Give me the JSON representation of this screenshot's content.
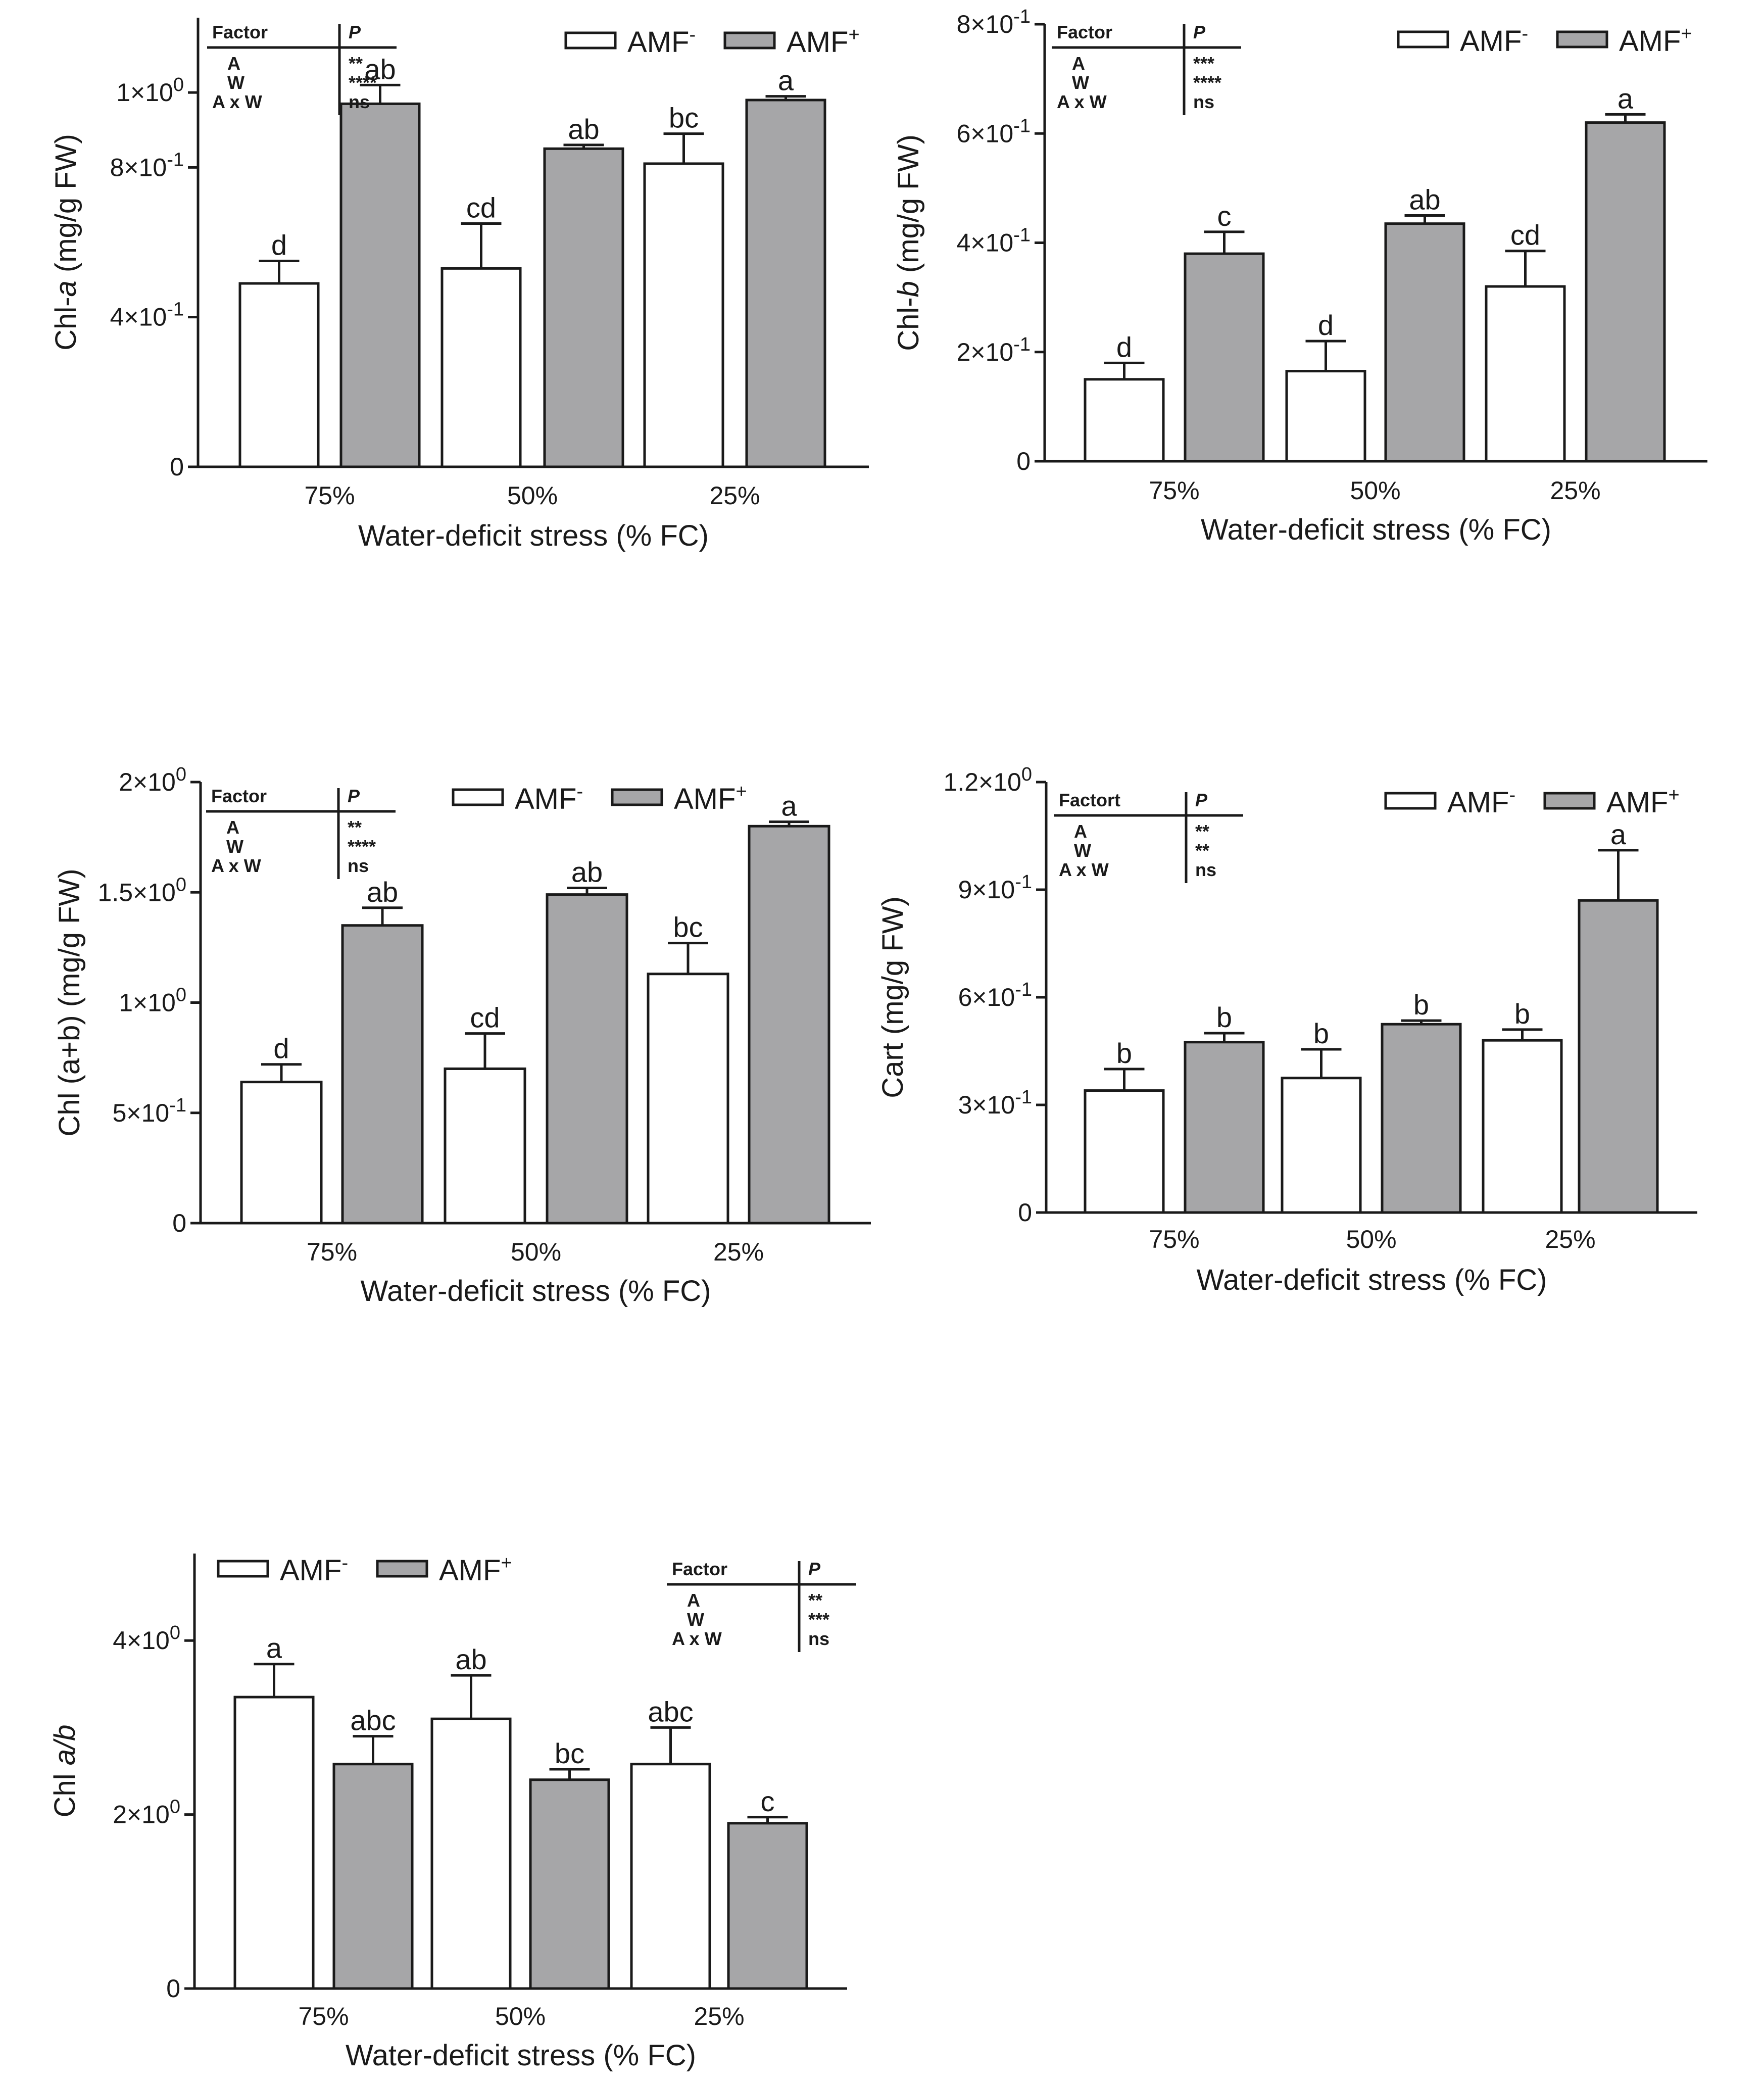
{
  "colors": {
    "amf_minus": "#ffffff",
    "amf_plus": "#a6a6a8",
    "stroke": "#1a1a1a"
  },
  "chart_data": [
    {
      "id": "chl-a",
      "type": "bar",
      "ylabel": "Chl-a (mg/g FW)",
      "xlabel": "Water-deficit stress (% FC)",
      "categories": [
        "75%",
        "50%",
        "25%"
      ],
      "ylim": [
        0,
        1.2
      ],
      "yticks": [
        0,
        0.4,
        0.8,
        1.0
      ],
      "ytick_labels": [
        "0",
        "4×10-1",
        "8×10-1",
        "1×100"
      ],
      "legend": [
        "AMF-",
        "AMF+"
      ],
      "legend_position": "top-right",
      "series": [
        {
          "name": "AMF-",
          "values": [
            0.49,
            0.53,
            0.81
          ],
          "errors": [
            0.06,
            0.12,
            0.08
          ],
          "letters": [
            "d",
            "cd",
            "bc"
          ]
        },
        {
          "name": "AMF+",
          "values": [
            0.97,
            0.85,
            0.98
          ],
          "errors": [
            0.05,
            0.01,
            0.01
          ],
          "letters": [
            "ab",
            "ab",
            "a"
          ]
        }
      ],
      "factor_table": {
        "header": "Factor",
        "p_header": "P",
        "rows": [
          [
            "A",
            "**"
          ],
          [
            "W",
            "****"
          ],
          [
            "A x W",
            "ns"
          ]
        ]
      }
    },
    {
      "id": "chl-b",
      "type": "bar",
      "ylabel": "Chl-b (mg/g FW)",
      "xlabel": "Water-deficit stress (% FC)",
      "categories": [
        "75%",
        "50%",
        "25%"
      ],
      "ylim": [
        0,
        0.8
      ],
      "yticks": [
        0,
        0.2,
        0.4,
        0.6,
        0.8
      ],
      "ytick_labels": [
        "0",
        "2×10-1",
        "4×10-1",
        "6×10-1",
        "8×10-1"
      ],
      "legend": [
        "AMF-",
        "AMF+"
      ],
      "legend_position": "top-right",
      "series": [
        {
          "name": "AMF-",
          "values": [
            0.15,
            0.165,
            0.32
          ],
          "errors": [
            0.03,
            0.055,
            0.065
          ],
          "letters": [
            "d",
            "d",
            "cd"
          ]
        },
        {
          "name": "AMF+",
          "values": [
            0.38,
            0.435,
            0.62
          ],
          "errors": [
            0.04,
            0.015,
            0.015
          ],
          "letters": [
            "c",
            "ab",
            "a"
          ]
        }
      ],
      "factor_table": {
        "header": "Factor",
        "p_header": "P",
        "rows": [
          [
            "A",
            "***"
          ],
          [
            "W",
            "****"
          ],
          [
            "A x W",
            "ns"
          ]
        ]
      }
    },
    {
      "id": "chl-ab",
      "type": "bar",
      "ylabel": "Chl (a+b) (mg/g FW)",
      "xlabel": "Water-deficit stress (% FC)",
      "categories": [
        "75%",
        "50%",
        "25%"
      ],
      "ylim": [
        0,
        2.0
      ],
      "yticks": [
        0,
        0.5,
        1.0,
        1.5,
        2.0
      ],
      "ytick_labels": [
        "0",
        "5×10-1",
        "1×100",
        "1.5×100",
        "2×100"
      ],
      "legend": [
        "AMF-",
        "AMF+"
      ],
      "legend_position": "top-right",
      "series": [
        {
          "name": "AMF-",
          "values": [
            0.64,
            0.7,
            1.13
          ],
          "errors": [
            0.08,
            0.16,
            0.14
          ],
          "letters": [
            "d",
            "cd",
            "bc"
          ]
        },
        {
          "name": "AMF+",
          "values": [
            1.35,
            1.49,
            1.8
          ],
          "errors": [
            0.08,
            0.03,
            0.02
          ],
          "letters": [
            "ab",
            "ab",
            "a"
          ]
        }
      ],
      "factor_table": {
        "header": "Factor",
        "p_header": "P",
        "rows": [
          [
            "A",
            "**"
          ],
          [
            "W",
            "****"
          ],
          [
            "A x W",
            "ns"
          ]
        ]
      }
    },
    {
      "id": "cart",
      "type": "bar",
      "ylabel": "Cart (mg/g FW)",
      "xlabel": "Water-deficit stress (% FC)",
      "categories": [
        "75%",
        "50%",
        "25%"
      ],
      "ylim": [
        0,
        1.2
      ],
      "yticks": [
        0,
        0.3,
        0.6,
        0.9,
        1.2
      ],
      "ytick_labels": [
        "0",
        "3×10-1",
        "6×10-1",
        "9×10-1",
        "1.2×100"
      ],
      "legend": [
        "AMF-",
        "AMF+"
      ],
      "legend_position": "top-right",
      "series": [
        {
          "name": "AMF-",
          "values": [
            0.34,
            0.375,
            0.48
          ],
          "errors": [
            0.06,
            0.08,
            0.03
          ],
          "letters": [
            "b",
            "b",
            "b"
          ]
        },
        {
          "name": "AMF+",
          "values": [
            0.475,
            0.525,
            0.87
          ],
          "errors": [
            0.025,
            0.01,
            0.14
          ],
          "letters": [
            "b",
            "b",
            "a"
          ]
        }
      ],
      "factor_table": {
        "header": "Factort",
        "p_header": "P",
        "rows": [
          [
            "A",
            "**"
          ],
          [
            "W",
            "**"
          ],
          [
            "A x W",
            "ns"
          ]
        ]
      }
    },
    {
      "id": "chl-ratio",
      "type": "bar",
      "ylabel": "Chl a/b",
      "xlabel": "Water-deficit stress (% FC)",
      "categories": [
        "75%",
        "50%",
        "25%"
      ],
      "ylim": [
        0,
        5.0
      ],
      "yticks": [
        0,
        2.0,
        4.0
      ],
      "ytick_labels": [
        "0",
        "2×100",
        "4×100"
      ],
      "legend": [
        "AMF-",
        "AMF+"
      ],
      "legend_position": "top-left",
      "series": [
        {
          "name": "AMF-",
          "values": [
            3.35,
            3.1,
            2.58
          ],
          "errors": [
            0.38,
            0.5,
            0.42
          ],
          "letters": [
            "a",
            "ab",
            "abc"
          ]
        },
        {
          "name": "AMF+",
          "values": [
            2.58,
            2.4,
            1.9
          ],
          "errors": [
            0.32,
            0.12,
            0.07
          ],
          "letters": [
            "abc",
            "bc",
            "c"
          ]
        }
      ],
      "factor_table": {
        "header": "Factor",
        "p_header": "P",
        "rows": [
          [
            "A",
            "**"
          ],
          [
            "W",
            "***"
          ],
          [
            "A x W",
            "ns"
          ]
        ]
      }
    }
  ]
}
